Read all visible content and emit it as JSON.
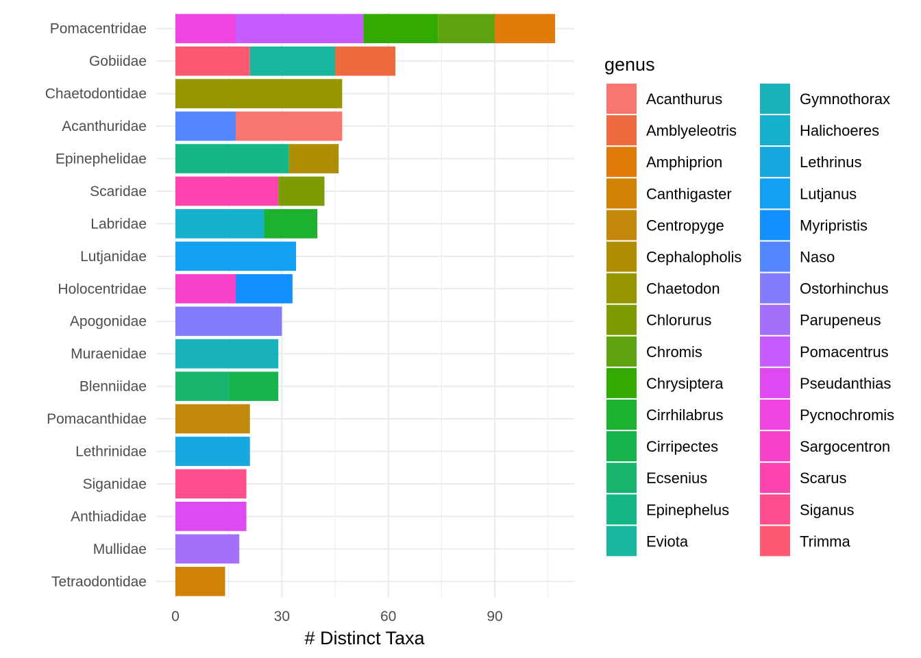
{
  "chart_data": {
    "type": "bar",
    "orientation": "horizontal",
    "stacked": true,
    "xlabel": "# Distinct Taxa",
    "ylabel": "",
    "xlim": [
      0,
      110
    ],
    "xticks": [
      0,
      30,
      60,
      90
    ],
    "grid": true,
    "legend": {
      "title": "genus",
      "placement": "right",
      "columns": 2
    },
    "categories": [
      "Pomacentridae",
      "Gobiidae",
      "Chaetodontidae",
      "Acanthuridae",
      "Epinephelidae",
      "Scaridae",
      "Labridae",
      "Lutjanidae",
      "Holocentridae",
      "Apogonidae",
      "Muraenidae",
      "Blenniidae",
      "Pomacanthidae",
      "Lethrinidae",
      "Siganidae",
      "Anthiadidae",
      "Mullidae",
      "Tetraodontidae"
    ],
    "genera": [
      {
        "name": "Acanthurus",
        "color": "#F8766D"
      },
      {
        "name": "Amblyeleotris",
        "color": "#EE6B3F"
      },
      {
        "name": "Amphiprion",
        "color": "#E07A08"
      },
      {
        "name": "Canthigaster",
        "color": "#D08206"
      },
      {
        "name": "Centropyge",
        "color": "#C1880A"
      },
      {
        "name": "Cephalopholis",
        "color": "#AE8E00"
      },
      {
        "name": "Chaetodon",
        "color": "#969600"
      },
      {
        "name": "Chlorurus",
        "color": "#7D9C00"
      },
      {
        "name": "Chromis",
        "color": "#5EA40E"
      },
      {
        "name": "Chrysiptera",
        "color": "#33AA00"
      },
      {
        "name": "Cirrhilabrus",
        "color": "#1CB130"
      },
      {
        "name": "Cirripectes",
        "color": "#18B34E"
      },
      {
        "name": "Ecsenius",
        "color": "#17B46E"
      },
      {
        "name": "Epinephelus",
        "color": "#15B786"
      },
      {
        "name": "Eviota",
        "color": "#17B69E"
      },
      {
        "name": "Gymnothorax",
        "color": "#17B3B8"
      },
      {
        "name": "Halichoeres",
        "color": "#16B0CF"
      },
      {
        "name": "Lethrinus",
        "color": "#17A8E0"
      },
      {
        "name": "Lutjanus",
        "color": "#12A0F0"
      },
      {
        "name": "Myripristis",
        "color": "#1390FF"
      },
      {
        "name": "Naso",
        "color": "#5386FF"
      },
      {
        "name": "Ostorhinchus",
        "color": "#837CFC"
      },
      {
        "name": "Parupeneus",
        "color": "#A56FFB"
      },
      {
        "name": "Pomacentrus",
        "color": "#C45CFF"
      },
      {
        "name": "Pseudanthias",
        "color": "#DE49F2"
      },
      {
        "name": "Pycnochromis",
        "color": "#EF44DF"
      },
      {
        "name": "Sargocentron",
        "color": "#FA41CB"
      },
      {
        "name": "Scarus",
        "color": "#FD44B0"
      },
      {
        "name": "Siganus",
        "color": "#FE4E8E"
      },
      {
        "name": "Trimma",
        "color": "#FF5872"
      }
    ],
    "series_by_category": [
      [
        {
          "genus": "Pycnochromis",
          "value": 17
        },
        {
          "genus": "Pomacentrus",
          "value": 36
        },
        {
          "genus": "Chrysiptera",
          "value": 21
        },
        {
          "genus": "Chromis",
          "value": 16
        },
        {
          "genus": "Amphiprion",
          "value": 17
        }
      ],
      [
        {
          "genus": "Trimma",
          "value": 21
        },
        {
          "genus": "Eviota",
          "value": 24
        },
        {
          "genus": "Amblyeleotris",
          "value": 17
        }
      ],
      [
        {
          "genus": "Chaetodon",
          "value": 47
        }
      ],
      [
        {
          "genus": "Naso",
          "value": 17
        },
        {
          "genus": "Acanthurus",
          "value": 30
        }
      ],
      [
        {
          "genus": "Epinephelus",
          "value": 32
        },
        {
          "genus": "Cephalopholis",
          "value": 14
        }
      ],
      [
        {
          "genus": "Scarus",
          "value": 29
        },
        {
          "genus": "Chlorurus",
          "value": 13
        }
      ],
      [
        {
          "genus": "Halichoeres",
          "value": 25
        },
        {
          "genus": "Cirrhilabrus",
          "value": 15
        }
      ],
      [
        {
          "genus": "Lutjanus",
          "value": 34
        }
      ],
      [
        {
          "genus": "Sargocentron",
          "value": 17
        },
        {
          "genus": "Myripristis",
          "value": 16
        }
      ],
      [
        {
          "genus": "Ostorhinchus",
          "value": 30
        }
      ],
      [
        {
          "genus": "Gymnothorax",
          "value": 29
        }
      ],
      [
        {
          "genus": "Ecsenius",
          "value": 15
        },
        {
          "genus": "Cirripectes",
          "value": 14
        }
      ],
      [
        {
          "genus": "Centropyge",
          "value": 21
        }
      ],
      [
        {
          "genus": "Lethrinus",
          "value": 21
        }
      ],
      [
        {
          "genus": "Siganus",
          "value": 20
        }
      ],
      [
        {
          "genus": "Pseudanthias",
          "value": 20
        }
      ],
      [
        {
          "genus": "Parupeneus",
          "value": 18
        }
      ],
      [
        {
          "genus": "Canthigaster",
          "value": 14
        }
      ]
    ]
  }
}
